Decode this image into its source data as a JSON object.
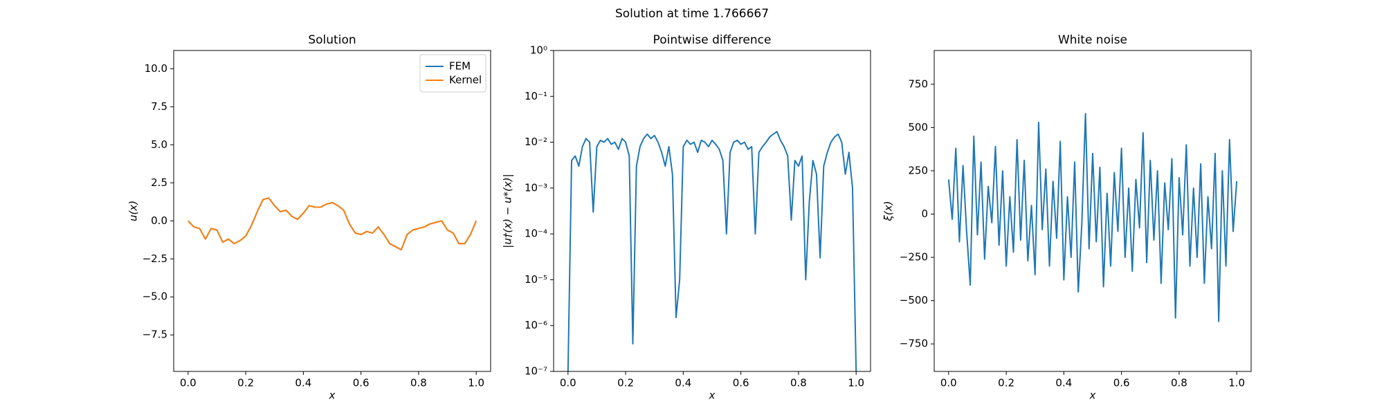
{
  "title": "Solution at time 1.766667",
  "chart_data": [
    {
      "type": "line",
      "title": "Solution",
      "x_label": "x",
      "y_label": "u(x)",
      "x": [
        0,
        0.02,
        0.04,
        0.06,
        0.08,
        0.1,
        0.12,
        0.14,
        0.16,
        0.18,
        0.2,
        0.22,
        0.24,
        0.26,
        0.28,
        0.3,
        0.32,
        0.34,
        0.36,
        0.38,
        0.4,
        0.42,
        0.44,
        0.46,
        0.48,
        0.5,
        0.52,
        0.54,
        0.56,
        0.58,
        0.6,
        0.62,
        0.64,
        0.66,
        0.68,
        0.7,
        0.72,
        0.74,
        0.76,
        0.78,
        0.8,
        0.82,
        0.84,
        0.86,
        0.88,
        0.9,
        0.92,
        0.94,
        0.96,
        0.98,
        1.0
      ],
      "series": [
        {
          "name": "FEM",
          "color": "#1f77b4",
          "values": [
            0,
            -0.4,
            -0.5,
            -1.2,
            -0.5,
            -0.6,
            -1.4,
            -1.2,
            -1.5,
            -1.3,
            -1.0,
            -0.3,
            0.6,
            1.4,
            1.5,
            1.0,
            0.6,
            0.7,
            0.3,
            0.1,
            0.5,
            1.0,
            0.9,
            0.9,
            1.1,
            1.2,
            1.0,
            0.7,
            -0.2,
            -0.8,
            -0.9,
            -0.7,
            -0.8,
            -0.4,
            -0.9,
            -1.5,
            -1.7,
            -1.9,
            -0.9,
            -0.6,
            -0.5,
            -0.4,
            -0.2,
            -0.1,
            0.0,
            -0.6,
            -0.8,
            -1.5,
            -1.5,
            -0.9,
            0.0
          ]
        },
        {
          "name": "Kernel",
          "color": "#ff7f0e",
          "values": [
            0,
            -0.4,
            -0.5,
            -1.2,
            -0.5,
            -0.6,
            -1.4,
            -1.2,
            -1.5,
            -1.3,
            -1.0,
            -0.3,
            0.6,
            1.4,
            1.5,
            1.0,
            0.6,
            0.7,
            0.3,
            0.1,
            0.5,
            1.0,
            0.9,
            0.9,
            1.1,
            1.2,
            1.0,
            0.7,
            -0.2,
            -0.8,
            -0.9,
            -0.7,
            -0.8,
            -0.4,
            -0.9,
            -1.5,
            -1.7,
            -1.9,
            -0.9,
            -0.6,
            -0.5,
            -0.4,
            -0.2,
            -0.1,
            0.0,
            -0.6,
            -0.8,
            -1.5,
            -1.5,
            -0.9,
            0.0
          ]
        }
      ],
      "xlim": [
        -0.05,
        1.05
      ],
      "ylim": [
        -9.9,
        11.2
      ],
      "xticks": [
        {
          "value": 0,
          "label": "0.0"
        },
        0.2,
        0.4,
        0.6,
        0.8,
        {
          "value": 1,
          "label": "1.0"
        }
      ],
      "yticks": [
        {
          "value": -7.5,
          "label": "−7.5"
        },
        {
          "value": -5,
          "label": "−5.0"
        },
        {
          "value": -2.5,
          "label": "−2.5"
        },
        {
          "value": 0,
          "label": "0.0"
        },
        2.5,
        {
          "value": 5,
          "label": "5.0"
        },
        7.5,
        {
          "value": 10,
          "label": "10.0"
        }
      ],
      "legend": "upper right",
      "grid": false
    },
    {
      "type": "line",
      "title": "Pointwise difference",
      "x_label": "x",
      "y_label": "|u†(x) − u*(x)|",
      "yscale": "log",
      "x": [
        0,
        0.0125,
        0.025,
        0.0375,
        0.05,
        0.0625,
        0.075,
        0.0875,
        0.1,
        0.1125,
        0.125,
        0.1375,
        0.15,
        0.1625,
        0.175,
        0.1875,
        0.2,
        0.2125,
        0.225,
        0.2375,
        0.25,
        0.2625,
        0.275,
        0.2875,
        0.3,
        0.3125,
        0.325,
        0.3375,
        0.35,
        0.3625,
        0.375,
        0.3875,
        0.4,
        0.4125,
        0.425,
        0.4375,
        0.45,
        0.4625,
        0.475,
        0.4875,
        0.5,
        0.5125,
        0.525,
        0.5375,
        0.55,
        0.5625,
        0.575,
        0.5875,
        0.6,
        0.6125,
        0.625,
        0.6375,
        0.65,
        0.6625,
        0.675,
        0.6875,
        0.7,
        0.7125,
        0.725,
        0.7375,
        0.75,
        0.7625,
        0.775,
        0.7875,
        0.8,
        0.8125,
        0.825,
        0.8375,
        0.85,
        0.8625,
        0.875,
        0.8875,
        0.9,
        0.9125,
        0.925,
        0.9375,
        0.95,
        0.9625,
        0.975,
        0.9875,
        1.0
      ],
      "series": [
        {
          "color": "#1f77b4",
          "values": [
            1e-07,
            0.004,
            0.005,
            0.003,
            0.008,
            0.012,
            0.01,
            0.0003,
            0.008,
            0.011,
            0.01,
            0.012,
            0.009,
            0.01,
            0.007,
            0.012,
            0.01,
            0.005,
            4e-07,
            0.003,
            0.008,
            0.012,
            0.015,
            0.012,
            0.014,
            0.01,
            0.006,
            0.003,
            0.008,
            0.002,
            1.5e-06,
            1e-05,
            0.008,
            0.011,
            0.009,
            0.01,
            0.006,
            0.011,
            0.01,
            0.008,
            0.011,
            0.009,
            0.007,
            0.004,
            0.0001,
            0.006,
            0.01,
            0.011,
            0.009,
            0.01,
            0.007,
            0.008,
            0.0001,
            0.006,
            0.008,
            0.01,
            0.013,
            0.015,
            0.017,
            0.011,
            0.008,
            0.005,
            0.0002,
            0.004,
            0.003,
            0.005,
            1e-05,
            0.0005,
            0.004,
            0.002,
            3e-05,
            0.003,
            0.006,
            0.01,
            0.013,
            0.015,
            0.01,
            0.002,
            0.006,
            0.001,
            1e-07
          ]
        }
      ],
      "xlim": [
        -0.05,
        1.05
      ],
      "ylim": [
        1e-07,
        1
      ],
      "xticks": [
        {
          "value": 0,
          "label": "0.0"
        },
        0.2,
        0.4,
        0.6,
        0.8,
        {
          "value": 1,
          "label": "1.0"
        }
      ],
      "yticks": [
        {
          "value": 1e-07,
          "label": "10⁻⁷"
        },
        {
          "value": 1e-06,
          "label": "10⁻⁶"
        },
        {
          "value": 1e-05,
          "label": "10⁻⁵"
        },
        {
          "value": 0.0001,
          "label": "10⁻⁴"
        },
        {
          "value": 0.001,
          "label": "10⁻³"
        },
        {
          "value": 0.01,
          "label": "10⁻²"
        },
        {
          "value": 0.1,
          "label": "10⁻¹"
        },
        {
          "value": 1,
          "label": "10⁰"
        }
      ],
      "grid": false
    },
    {
      "type": "line",
      "title": "White noise",
      "x_label": "x",
      "y_label": "ξ(x)",
      "x": [
        0,
        0.0125,
        0.025,
        0.0375,
        0.05,
        0.0625,
        0.075,
        0.0875,
        0.1,
        0.1125,
        0.125,
        0.1375,
        0.15,
        0.1625,
        0.175,
        0.1875,
        0.2,
        0.2125,
        0.225,
        0.2375,
        0.25,
        0.2625,
        0.275,
        0.2875,
        0.3,
        0.3125,
        0.325,
        0.3375,
        0.35,
        0.3625,
        0.375,
        0.3875,
        0.4,
        0.4125,
        0.425,
        0.4375,
        0.45,
        0.4625,
        0.475,
        0.4875,
        0.5,
        0.5125,
        0.525,
        0.5375,
        0.55,
        0.5625,
        0.575,
        0.5875,
        0.6,
        0.6125,
        0.625,
        0.6375,
        0.65,
        0.6625,
        0.675,
        0.6875,
        0.7,
        0.7125,
        0.725,
        0.7375,
        0.75,
        0.7625,
        0.775,
        0.7875,
        0.8,
        0.8125,
        0.825,
        0.8375,
        0.85,
        0.8625,
        0.875,
        0.8875,
        0.9,
        0.9125,
        0.925,
        0.9375,
        0.95,
        0.9625,
        0.975,
        0.9875,
        1.0
      ],
      "series": [
        {
          "color": "#1f77b4",
          "values": [
            200,
            -30,
            380,
            -160,
            280,
            -100,
            -410,
            450,
            -120,
            300,
            -260,
            160,
            -50,
            390,
            -180,
            250,
            -300,
            100,
            -220,
            430,
            -150,
            310,
            -270,
            50,
            -350,
            530,
            -90,
            260,
            -300,
            190,
            -140,
            420,
            -380,
            100,
            -250,
            300,
            -450,
            -50,
            580,
            -200,
            350,
            -160,
            270,
            -420,
            120,
            -300,
            240,
            -100,
            380,
            -250,
            150,
            -330,
            200,
            -80,
            470,
            -280,
            310,
            -150,
            250,
            -400,
            180,
            -90,
            320,
            -600,
            210,
            -120,
            400,
            -300,
            150,
            -250,
            290,
            -400,
            100,
            -200,
            350,
            -620,
            250,
            -300,
            430,
            -100,
            190
          ]
        }
      ],
      "xlim": [
        -0.05,
        1.05
      ],
      "ylim": [
        -909,
        945
      ],
      "xticks": [
        {
          "value": 0,
          "label": "0.0"
        },
        0.2,
        0.4,
        0.6,
        0.8,
        {
          "value": 1,
          "label": "1.0"
        }
      ],
      "yticks": [
        {
          "value": -750,
          "label": "−750"
        },
        {
          "value": -500,
          "label": "−500"
        },
        {
          "value": -250,
          "label": "−250"
        },
        0,
        250,
        500,
        750
      ],
      "grid": false
    }
  ]
}
